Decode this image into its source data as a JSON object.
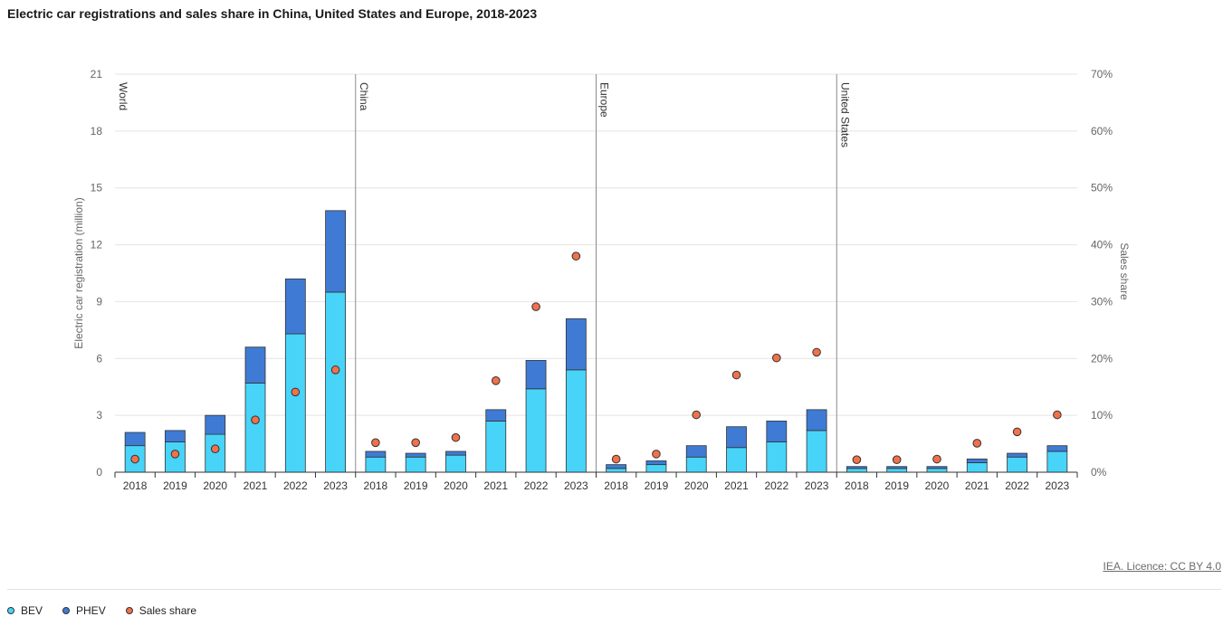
{
  "title": "Electric car registrations and sales share in China, United States and Europe, 2018-2023",
  "licence": "IEA. Licence: CC BY 4.0",
  "colors": {
    "bev": "#47d4f8",
    "phev": "#3f7bd4",
    "share": "#f0714a",
    "grid": "#e4e4e4",
    "axis": "#333333",
    "divider": "#8c8c8c",
    "tick_text": "#666666"
  },
  "legend": [
    {
      "label": "BEV",
      "color": "#47d4f8"
    },
    {
      "label": "PHEV",
      "color": "#3f7bd4"
    },
    {
      "label": "Sales share",
      "color": "#f0714a"
    }
  ],
  "chart_data": {
    "type": "bar",
    "stacked": true,
    "ylabel": "Electric car registration (million)",
    "y2label": "Sales share",
    "ylim": [
      0,
      21
    ],
    "y_ticks": [
      0,
      3,
      6,
      9,
      12,
      15,
      18,
      21
    ],
    "y2lim": [
      0,
      70
    ],
    "y2_ticks": [
      "0%",
      "10%",
      "20%",
      "30%",
      "40%",
      "50%",
      "60%",
      "70%"
    ],
    "grid": true,
    "legend_position": "bottom-left",
    "groups": [
      "World",
      "China",
      "Europe",
      "United States"
    ],
    "categories": [
      "2018",
      "2019",
      "2020",
      "2021",
      "2022",
      "2023"
    ],
    "series": [
      {
        "name": "BEV",
        "values": [
          [
            1.4,
            1.6,
            2.0,
            4.7,
            7.3,
            9.5
          ],
          [
            0.8,
            0.8,
            0.9,
            2.7,
            4.4,
            5.4
          ],
          [
            0.2,
            0.4,
            0.8,
            1.3,
            1.6,
            2.2
          ],
          [
            0.2,
            0.2,
            0.2,
            0.5,
            0.8,
            1.1
          ]
        ]
      },
      {
        "name": "PHEV",
        "values": [
          [
            0.7,
            0.6,
            1.0,
            1.9,
            2.9,
            4.3
          ],
          [
            0.3,
            0.2,
            0.2,
            0.6,
            1.5,
            2.7
          ],
          [
            0.2,
            0.2,
            0.6,
            1.1,
            1.1,
            1.1
          ],
          [
            0.1,
            0.1,
            0.1,
            0.2,
            0.2,
            0.3
          ]
        ]
      },
      {
        "name": "Sales share",
        "axis": "right",
        "values": [
          [
            2.3,
            3.2,
            4.1,
            9.2,
            14.1,
            18.0
          ],
          [
            5.2,
            5.2,
            6.1,
            16.1,
            29.1,
            38.0
          ],
          [
            2.3,
            3.2,
            10.1,
            17.1,
            20.1,
            21.1
          ],
          [
            2.2,
            2.2,
            2.3,
            5.1,
            7.1,
            10.1
          ]
        ]
      }
    ]
  }
}
